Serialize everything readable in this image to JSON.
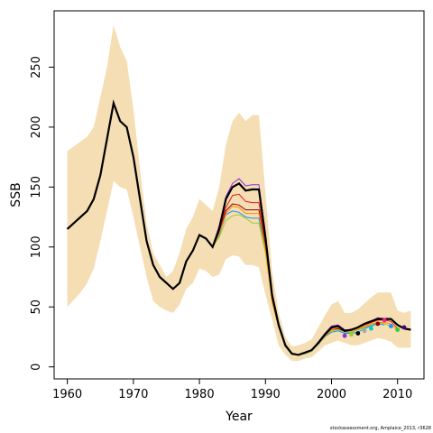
{
  "chart_data": {
    "type": "line",
    "xlabel": "Year",
    "ylabel": "SSB",
    "xlim": [
      1958,
      2014
    ],
    "ylim": [
      -10,
      297
    ],
    "x_ticks": [
      1960,
      1970,
      1980,
      1990,
      2000,
      2010
    ],
    "y_ticks": [
      0,
      50,
      100,
      150,
      200,
      250
    ],
    "band_color": "#f5deb3",
    "band": {
      "years": [
        1960,
        1961,
        1962,
        1963,
        1964,
        1965,
        1966,
        1967,
        1968,
        1969,
        1970,
        1971,
        1972,
        1973,
        1974,
        1975,
        1976,
        1977,
        1978,
        1979,
        1980,
        1981,
        1982,
        1983,
        1984,
        1985,
        1986,
        1987,
        1988,
        1989,
        1990,
        1991,
        1992,
        1993,
        1994,
        1995,
        1996,
        1997,
        1998,
        1999,
        2000,
        2001,
        2002,
        2003,
        2004,
        2005,
        2006,
        2007,
        2008,
        2009,
        2010,
        2011,
        2012
      ],
      "upper": [
        180,
        184,
        188,
        192,
        200,
        225,
        250,
        285,
        267,
        255,
        215,
        165,
        120,
        95,
        85,
        75,
        80,
        95,
        115,
        125,
        140,
        135,
        130,
        150,
        185,
        205,
        212,
        205,
        210,
        210,
        145,
        80,
        45,
        25,
        17,
        18,
        20,
        23,
        33,
        43,
        52,
        55,
        45,
        45,
        48,
        53,
        58,
        62,
        62,
        62,
        47,
        45,
        47
      ],
      "lower": [
        50,
        56,
        62,
        70,
        82,
        105,
        130,
        155,
        150,
        148,
        125,
        100,
        75,
        55,
        50,
        47,
        45,
        52,
        65,
        70,
        82,
        80,
        75,
        77,
        90,
        93,
        92,
        85,
        85,
        83,
        60,
        40,
        18,
        10,
        5,
        5,
        7,
        8,
        13,
        18,
        20,
        22,
        20,
        18,
        18,
        20,
        22,
        24,
        23,
        21,
        16,
        16,
        16
      ]
    },
    "series": [
      {
        "color": "#000000",
        "values": [
          115,
          120,
          125,
          130,
          140,
          160,
          190,
          220,
          205,
          200,
          175,
          140,
          105,
          85,
          75,
          70,
          65,
          70,
          88,
          97,
          110,
          107,
          100,
          115,
          140,
          150,
          153,
          147,
          148,
          148,
          108,
          60,
          35,
          18,
          11,
          10,
          12,
          14,
          20,
          27,
          33,
          34,
          30,
          31,
          33,
          36,
          38,
          40,
          40,
          40,
          35,
          32,
          31
        ]
      },
      {
        "color": "#e31a1c",
        "values": [
          115,
          120,
          125,
          130,
          140,
          160,
          190,
          220,
          205,
          200,
          175,
          140,
          105,
          85,
          75,
          70,
          65,
          70,
          88,
          97,
          110,
          107,
          100,
          113,
          133,
          143,
          144,
          138,
          137,
          137,
          103,
          57,
          34,
          18,
          11,
          10,
          12,
          14,
          20,
          26,
          32,
          34,
          30,
          31,
          33,
          35,
          37,
          39,
          39,
          38,
          32
        ]
      },
      {
        "color": "#ff8c00",
        "values": [
          115,
          120,
          125,
          130,
          140,
          160,
          190,
          220,
          205,
          200,
          175,
          140,
          105,
          85,
          75,
          70,
          65,
          70,
          88,
          97,
          110,
          107,
          100,
          111,
          128,
          134,
          133,
          128,
          128,
          128,
          98,
          55,
          33,
          17,
          11,
          10,
          12,
          14,
          20,
          26,
          31,
          33,
          30,
          30,
          32,
          34,
          36,
          37,
          37,
          36,
          30
        ]
      },
      {
        "color": "#9acd32",
        "values": [
          115,
          120,
          125,
          130,
          140,
          160,
          190,
          220,
          205,
          200,
          175,
          140,
          105,
          85,
          75,
          70,
          65,
          70,
          88,
          97,
          110,
          107,
          100,
          108,
          122,
          126,
          127,
          124,
          120,
          120,
          95,
          54,
          33,
          17,
          11,
          10,
          11,
          13,
          19,
          25,
          30,
          31,
          29,
          29,
          31,
          33,
          35,
          37,
          36,
          34
        ]
      },
      {
        "color": "#1e90ff",
        "values": [
          115,
          120,
          125,
          130,
          140,
          160,
          190,
          220,
          205,
          200,
          175,
          140,
          105,
          85,
          75,
          70,
          65,
          70,
          88,
          97,
          110,
          107,
          100,
          110,
          127,
          130,
          129,
          125,
          124,
          124,
          97,
          55,
          33,
          17,
          11,
          10,
          11,
          13,
          19,
          25,
          29,
          30,
          28,
          28,
          29,
          32,
          34,
          36,
          35
        ]
      },
      {
        "color": "#8a2be2",
        "values": [
          115,
          120,
          125,
          130,
          140,
          160,
          190,
          220,
          205,
          200,
          175,
          140,
          105,
          85,
          75,
          70,
          65,
          70,
          88,
          97,
          110,
          107,
          100,
          118,
          142,
          153,
          157,
          151,
          152,
          152,
          111,
          62,
          36,
          19,
          11,
          10,
          12,
          14,
          21,
          28,
          34,
          35,
          31,
          31,
          33,
          36,
          38,
          41,
          40
        ]
      },
      {
        "color": "#8b0000",
        "values": [
          115,
          120,
          125,
          130,
          140,
          160,
          190,
          220,
          205,
          200,
          175,
          140,
          105,
          85,
          75,
          70,
          65,
          70,
          88,
          97,
          110,
          107,
          100,
          112,
          130,
          136,
          135,
          131,
          131,
          131,
          100,
          56,
          34,
          17,
          11,
          10,
          12,
          14,
          20,
          26,
          31,
          32,
          29,
          29,
          31,
          33,
          35,
          37
        ]
      }
    ],
    "endpoints": [
      {
        "year": 2002,
        "value": 26,
        "color": "#8a2be2"
      },
      {
        "year": 2003,
        "value": 27,
        "color": "#9acd32"
      },
      {
        "year": 2004,
        "value": 28,
        "color": "#000000"
      },
      {
        "year": 2005,
        "value": 30,
        "color": "#aaaaaa"
      },
      {
        "year": 2006,
        "value": 32,
        "color": "#00ced1"
      },
      {
        "year": 2007,
        "value": 36,
        "color": "#8b0000"
      },
      {
        "year": 2008,
        "value": 39,
        "color": "#ff1493"
      },
      {
        "year": 2009,
        "value": 34,
        "color": "#1e90ff"
      },
      {
        "year": 2010,
        "value": 31,
        "color": "#32cd32"
      },
      {
        "year": 2011,
        "value": 33,
        "color": "#4b0082"
      }
    ]
  },
  "credit": "stockassessment.org, Amplaice_2013, r3628"
}
